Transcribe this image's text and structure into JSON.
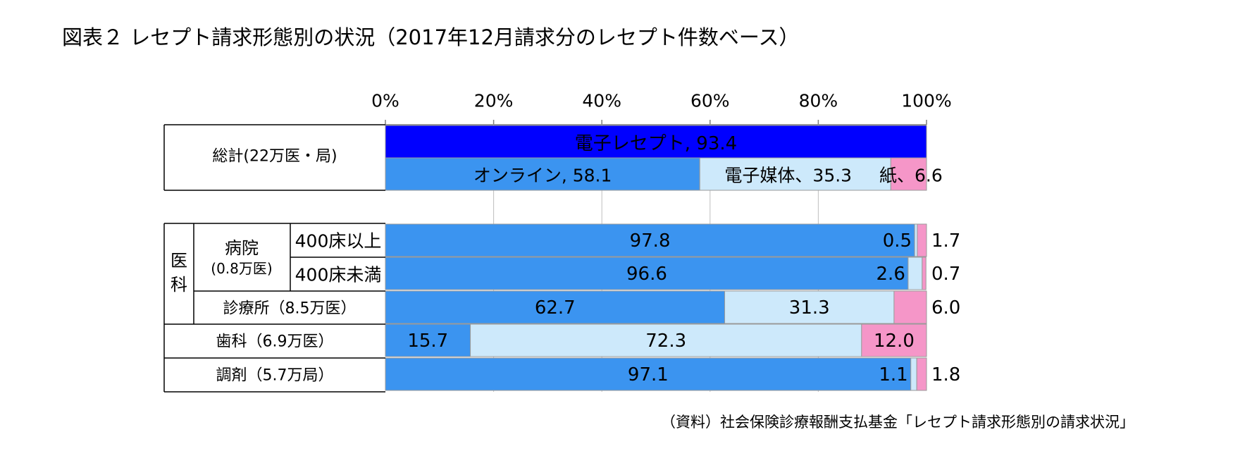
{
  "title": "図表２ レセプト請求形態別の状況（2017年12月請求分のレセプト件数ベース）",
  "source": "（資料）社会保険診療報酬支払基金「レセプト請求形態別の請求状況」",
  "colors": {
    "denshi_receipt": "#0000ff",
    "online": "#3b94f0",
    "media": "#cde9fb",
    "paper": "#f596c8",
    "grid": "#bfbfbf",
    "bar_edge": "#9a9a9a"
  },
  "chart_data": {
    "type": "bar",
    "orientation": "horizontal",
    "stacked": true,
    "xlim": [
      0,
      100
    ],
    "x_ticks": [
      "0%",
      "20%",
      "40%",
      "60%",
      "80%",
      "100%"
    ],
    "total": {
      "label": "総計(22万医・局)",
      "top_bar": {
        "label": "電子レセプト, 93.4",
        "value": 93.4
      },
      "bottom_bar": [
        {
          "key": "online",
          "label": "オンライン, 58.1",
          "value": 58.1
        },
        {
          "key": "media",
          "label": "電子媒体、35.3",
          "value": 35.3
        },
        {
          "key": "paper",
          "label": "紙、6.6",
          "value": 6.6
        }
      ]
    },
    "group_label_ika": "医科",
    "sub_label_hospital": "病院",
    "sub_label_hospital_count": "(0.8万医)",
    "rows": [
      {
        "label": "400床以上",
        "segments": [
          97.8,
          0.5,
          1.7
        ],
        "labels": [
          "97.8",
          "0.5",
          "1.7"
        ]
      },
      {
        "label": "400床未満",
        "segments": [
          96.6,
          2.6,
          0.7
        ],
        "labels": [
          "96.6",
          "2.6",
          "0.7"
        ]
      },
      {
        "label": "診療所（8.5万医）",
        "segments": [
          62.7,
          31.3,
          6.0
        ],
        "labels": [
          "62.7",
          "31.3",
          "6.0"
        ]
      },
      {
        "label": "歯科（6.9万医）",
        "segments": [
          15.7,
          72.3,
          12.0
        ],
        "labels": [
          "15.7",
          "72.3",
          "12.0"
        ]
      },
      {
        "label": "調剤（5.7万局）",
        "segments": [
          97.1,
          1.1,
          1.8
        ],
        "labels": [
          "97.1",
          "1.1",
          "1.8"
        ]
      }
    ]
  }
}
